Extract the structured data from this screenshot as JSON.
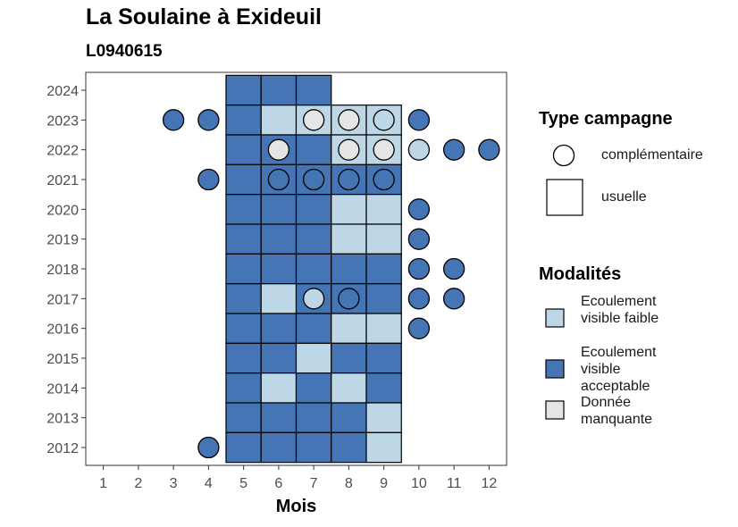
{
  "chart_data": {
    "type": "heatmap",
    "title": "La Soulaine à Exideuil",
    "subtitle": "L0940615",
    "xlabel": "Mois",
    "ylabel": "",
    "x_ticks": [
      1,
      2,
      3,
      4,
      5,
      6,
      7,
      8,
      9,
      10,
      11,
      12
    ],
    "y_ticks": [
      2012,
      2013,
      2014,
      2015,
      2016,
      2017,
      2018,
      2019,
      2020,
      2021,
      2022,
      2023,
      2024
    ],
    "xlim": [
      0.5,
      12.5
    ],
    "ylim": [
      2011.4,
      2024.6
    ],
    "colors": {
      "faible": "#bdd7e7",
      "acceptable": "#4575b4",
      "manquante": "#e5e5e5"
    },
    "legend_campagne": {
      "title": "Type campagne",
      "items": [
        {
          "label": "complémentaire",
          "shape": "circle"
        },
        {
          "label": "usuelle",
          "shape": "square"
        }
      ]
    },
    "legend_modalites": {
      "title": "Modalités",
      "items": [
        {
          "label": "Ecoulement visible faible",
          "key": "faible"
        },
        {
          "label": "Ecoulement visible acceptable",
          "key": "acceptable"
        },
        {
          "label": "Donnée manquante",
          "key": "manquante"
        }
      ]
    },
    "usuelle": [
      {
        "year": 2024,
        "month": 5,
        "modalite": "acceptable"
      },
      {
        "year": 2024,
        "month": 6,
        "modalite": "acceptable"
      },
      {
        "year": 2024,
        "month": 7,
        "modalite": "acceptable"
      },
      {
        "year": 2023,
        "month": 5,
        "modalite": "acceptable"
      },
      {
        "year": 2023,
        "month": 6,
        "modalite": "faible"
      },
      {
        "year": 2023,
        "month": 7,
        "modalite": "faible"
      },
      {
        "year": 2023,
        "month": 8,
        "modalite": "faible"
      },
      {
        "year": 2023,
        "month": 9,
        "modalite": "faible"
      },
      {
        "year": 2022,
        "month": 5,
        "modalite": "acceptable"
      },
      {
        "year": 2022,
        "month": 6,
        "modalite": "acceptable"
      },
      {
        "year": 2022,
        "month": 7,
        "modalite": "acceptable"
      },
      {
        "year": 2022,
        "month": 8,
        "modalite": "faible"
      },
      {
        "year": 2022,
        "month": 9,
        "modalite": "faible"
      },
      {
        "year": 2021,
        "month": 5,
        "modalite": "acceptable"
      },
      {
        "year": 2021,
        "month": 6,
        "modalite": "acceptable"
      },
      {
        "year": 2021,
        "month": 7,
        "modalite": "acceptable"
      },
      {
        "year": 2021,
        "month": 8,
        "modalite": "acceptable"
      },
      {
        "year": 2021,
        "month": 9,
        "modalite": "acceptable"
      },
      {
        "year": 2020,
        "month": 5,
        "modalite": "acceptable"
      },
      {
        "year": 2020,
        "month": 6,
        "modalite": "acceptable"
      },
      {
        "year": 2020,
        "month": 7,
        "modalite": "acceptable"
      },
      {
        "year": 2020,
        "month": 8,
        "modalite": "faible"
      },
      {
        "year": 2020,
        "month": 9,
        "modalite": "faible"
      },
      {
        "year": 2019,
        "month": 5,
        "modalite": "acceptable"
      },
      {
        "year": 2019,
        "month": 6,
        "modalite": "acceptable"
      },
      {
        "year": 2019,
        "month": 7,
        "modalite": "acceptable"
      },
      {
        "year": 2019,
        "month": 8,
        "modalite": "faible"
      },
      {
        "year": 2019,
        "month": 9,
        "modalite": "faible"
      },
      {
        "year": 2018,
        "month": 5,
        "modalite": "acceptable"
      },
      {
        "year": 2018,
        "month": 6,
        "modalite": "acceptable"
      },
      {
        "year": 2018,
        "month": 7,
        "modalite": "acceptable"
      },
      {
        "year": 2018,
        "month": 8,
        "modalite": "acceptable"
      },
      {
        "year": 2018,
        "month": 9,
        "modalite": "acceptable"
      },
      {
        "year": 2017,
        "month": 5,
        "modalite": "acceptable"
      },
      {
        "year": 2017,
        "month": 6,
        "modalite": "faible"
      },
      {
        "year": 2017,
        "month": 7,
        "modalite": "acceptable"
      },
      {
        "year": 2017,
        "month": 8,
        "modalite": "acceptable"
      },
      {
        "year": 2017,
        "month": 9,
        "modalite": "acceptable"
      },
      {
        "year": 2016,
        "month": 5,
        "modalite": "acceptable"
      },
      {
        "year": 2016,
        "month": 6,
        "modalite": "acceptable"
      },
      {
        "year": 2016,
        "month": 7,
        "modalite": "acceptable"
      },
      {
        "year": 2016,
        "month": 8,
        "modalite": "faible"
      },
      {
        "year": 2016,
        "month": 9,
        "modalite": "faible"
      },
      {
        "year": 2015,
        "month": 5,
        "modalite": "acceptable"
      },
      {
        "year": 2015,
        "month": 6,
        "modalite": "acceptable"
      },
      {
        "year": 2015,
        "month": 7,
        "modalite": "faible"
      },
      {
        "year": 2015,
        "month": 8,
        "modalite": "acceptable"
      },
      {
        "year": 2015,
        "month": 9,
        "modalite": "acceptable"
      },
      {
        "year": 2014,
        "month": 5,
        "modalite": "acceptable"
      },
      {
        "year": 2014,
        "month": 6,
        "modalite": "faible"
      },
      {
        "year": 2014,
        "month": 7,
        "modalite": "acceptable"
      },
      {
        "year": 2014,
        "month": 8,
        "modalite": "faible"
      },
      {
        "year": 2014,
        "month": 9,
        "modalite": "acceptable"
      },
      {
        "year": 2013,
        "month": 5,
        "modalite": "acceptable"
      },
      {
        "year": 2013,
        "month": 6,
        "modalite": "acceptable"
      },
      {
        "year": 2013,
        "month": 7,
        "modalite": "acceptable"
      },
      {
        "year": 2013,
        "month": 8,
        "modalite": "acceptable"
      },
      {
        "year": 2013,
        "month": 9,
        "modalite": "faible"
      },
      {
        "year": 2012,
        "month": 5,
        "modalite": "acceptable"
      },
      {
        "year": 2012,
        "month": 6,
        "modalite": "acceptable"
      },
      {
        "year": 2012,
        "month": 7,
        "modalite": "acceptable"
      },
      {
        "year": 2012,
        "month": 8,
        "modalite": "acceptable"
      },
      {
        "year": 2012,
        "month": 9,
        "modalite": "faible"
      }
    ],
    "complementaire": [
      {
        "year": 2023,
        "month": 3,
        "modalite": "acceptable"
      },
      {
        "year": 2023,
        "month": 4,
        "modalite": "acceptable"
      },
      {
        "year": 2023,
        "month": 7,
        "modalite": "manquante"
      },
      {
        "year": 2023,
        "month": 8,
        "modalite": "manquante"
      },
      {
        "year": 2023,
        "month": 9,
        "modalite": "faible"
      },
      {
        "year": 2023,
        "month": 10,
        "modalite": "acceptable"
      },
      {
        "year": 2022,
        "month": 6,
        "modalite": "manquante"
      },
      {
        "year": 2022,
        "month": 8,
        "modalite": "manquante"
      },
      {
        "year": 2022,
        "month": 9,
        "modalite": "manquante"
      },
      {
        "year": 2022,
        "month": 10,
        "modalite": "faible"
      },
      {
        "year": 2022,
        "month": 11,
        "modalite": "acceptable"
      },
      {
        "year": 2022,
        "month": 12,
        "modalite": "acceptable"
      },
      {
        "year": 2021,
        "month": 4,
        "modalite": "acceptable"
      },
      {
        "year": 2021,
        "month": 6,
        "modalite": "acceptable"
      },
      {
        "year": 2021,
        "month": 7,
        "modalite": "acceptable"
      },
      {
        "year": 2021,
        "month": 8,
        "modalite": "acceptable"
      },
      {
        "year": 2021,
        "month": 9,
        "modalite": "acceptable"
      },
      {
        "year": 2020,
        "month": 10,
        "modalite": "acceptable"
      },
      {
        "year": 2019,
        "month": 10,
        "modalite": "acceptable"
      },
      {
        "year": 2018,
        "month": 10,
        "modalite": "acceptable"
      },
      {
        "year": 2018,
        "month": 11,
        "modalite": "acceptable"
      },
      {
        "year": 2017,
        "month": 7,
        "modalite": "faible"
      },
      {
        "year": 2017,
        "month": 8,
        "modalite": "acceptable"
      },
      {
        "year": 2017,
        "month": 10,
        "modalite": "acceptable"
      },
      {
        "year": 2017,
        "month": 11,
        "modalite": "acceptable"
      },
      {
        "year": 2016,
        "month": 10,
        "modalite": "acceptable"
      },
      {
        "year": 2012,
        "month": 4,
        "modalite": "acceptable"
      }
    ]
  }
}
